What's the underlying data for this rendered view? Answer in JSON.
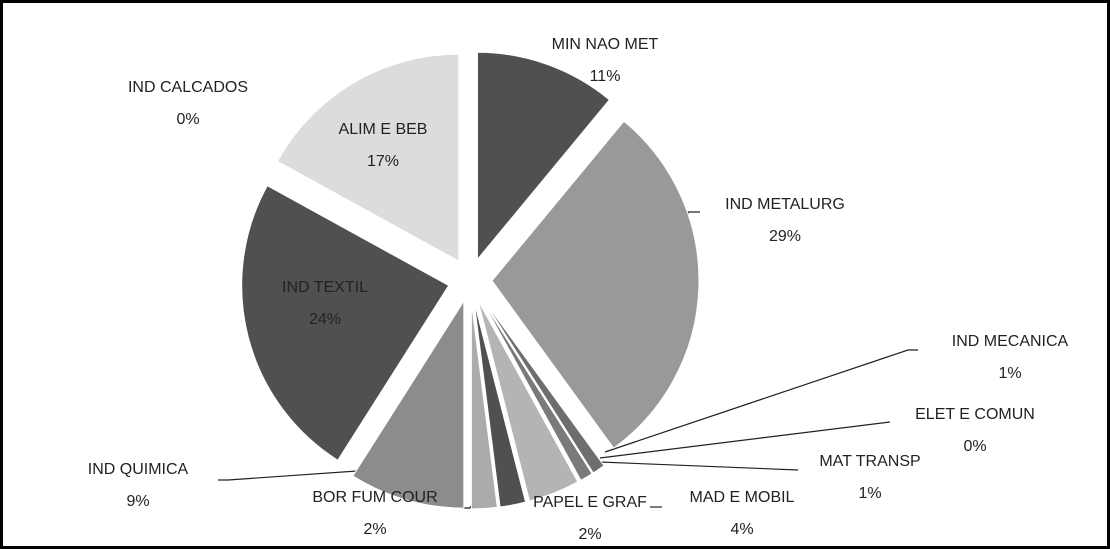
{
  "chart_data": {
    "type": "pie",
    "categories": [
      "MIN NAO MET",
      "IND METALURG",
      "IND MECANICA",
      "ELET E COMUN",
      "MAT TRANSP",
      "MAD E MOBIL",
      "PAPEL E GRAF",
      "BOR FUM COUR",
      "IND QUIMICA",
      "IND TEXTIL",
      "ALIM E BEB",
      "IND CALCADOS"
    ],
    "values": [
      11,
      29,
      1,
      0,
      1,
      4,
      2,
      2,
      9,
      24,
      17,
      0
    ],
    "value_labels": [
      "11%",
      "29%",
      "1%",
      "0%",
      "1%",
      "4%",
      "2%",
      "2%",
      "9%",
      "24%",
      "17%",
      "0%"
    ],
    "colors": [
      "#505050",
      "#999999",
      "#6e6e6e",
      "#8a8a8a",
      "#7a7a7a",
      "#b4b4b4",
      "#505050",
      "#ababab",
      "#8c8c8c",
      "#505050",
      "#dcdcdc",
      "#ffffff"
    ]
  }
}
